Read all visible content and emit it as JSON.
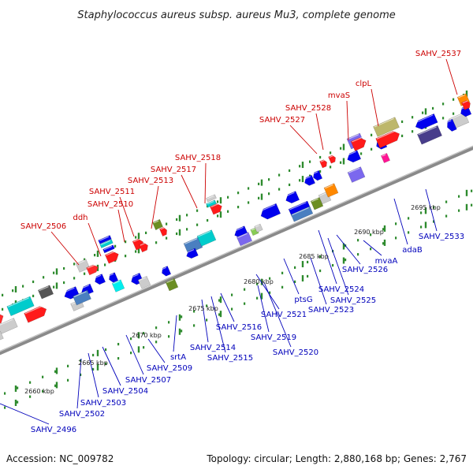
{
  "title": "Staphylococcus aureus subsp. aureus Mu3, complete genome",
  "footer": {
    "accession": "Accession: NC_009782",
    "summary": "Topology: circular; Length: 2,880,168 bp; Genes: 2,767"
  },
  "colors": {
    "backbone": "#8a8a8a",
    "tick": "#2e8b2e",
    "forward_label": "#cc0000",
    "reverse_label": "#0000bb"
  },
  "kbp_labels": [
    "2660 kbp",
    "2665 kbp",
    "2670 kbp",
    "2675 kbp",
    "2680 kbp",
    "2685 kbp",
    "2690 kbp",
    "2695 kbp"
  ],
  "forward_labels": [
    "SAHV_2506",
    "ddh",
    "SAHV_2510",
    "SAHV_2511",
    "SAHV_2513",
    "SAHV_2517",
    "SAHV_2518",
    "SAHV_2527",
    "SAHV_2528",
    "mvaS",
    "clpL",
    "SAHV_2537"
  ],
  "reverse_labels": [
    "SAHV_2496",
    "SAHV_2502",
    "SAHV_2503",
    "SAHV_2504",
    "SAHV_2507",
    "SAHV_2509",
    "srtA",
    "SAHV_2514",
    "SAHV_2515",
    "SAHV_2516",
    "SAHV_2519",
    "SAHV_2520",
    "SAHV_2521",
    "ptsG",
    "SAHV_2523",
    "SAHV_2524",
    "SAHV_2525",
    "SAHV_2526",
    "mvaA",
    "adaB",
    "SAHV_2533"
  ]
}
